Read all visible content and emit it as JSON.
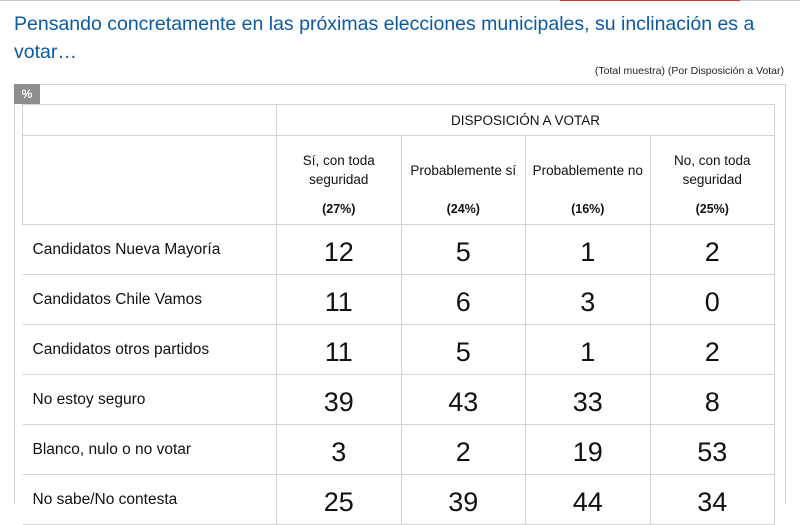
{
  "header": {
    "title": "Pensando concretamente en las próximas elecciones municipales, su inclinación es a votar…",
    "subtitle": "(Total muestra) (Por Disposición a Votar)",
    "unit_badge": "%"
  },
  "chart_data": {
    "type": "table",
    "title": "Pensando concretamente en las próximas elecciones municipales, su inclinación es a votar…",
    "group_header": "DISPOSICIÓN A VOTAR",
    "columns": [
      {
        "name": "Sí, con toda seguridad",
        "share": "(27%)"
      },
      {
        "name": "Probablemente sí",
        "share": "(24%)"
      },
      {
        "name": "Probablemente no",
        "share": "(16%)"
      },
      {
        "name": "No, con toda seguridad",
        "share": "(25%)"
      }
    ],
    "rows": [
      {
        "label": "Candidatos Nueva Mayoría",
        "values": [
          12,
          5,
          1,
          2
        ]
      },
      {
        "label": "Candidatos Chile Vamos",
        "values": [
          11,
          6,
          3,
          0
        ]
      },
      {
        "label": "Candidatos otros partidos",
        "values": [
          11,
          5,
          1,
          2
        ]
      },
      {
        "label": "No estoy seguro",
        "values": [
          39,
          43,
          33,
          8
        ]
      },
      {
        "label": "Blanco, nulo o no votar",
        "values": [
          3,
          2,
          19,
          53
        ]
      },
      {
        "label": "No sabe/No contesta",
        "values": [
          25,
          39,
          44,
          34
        ]
      }
    ]
  }
}
